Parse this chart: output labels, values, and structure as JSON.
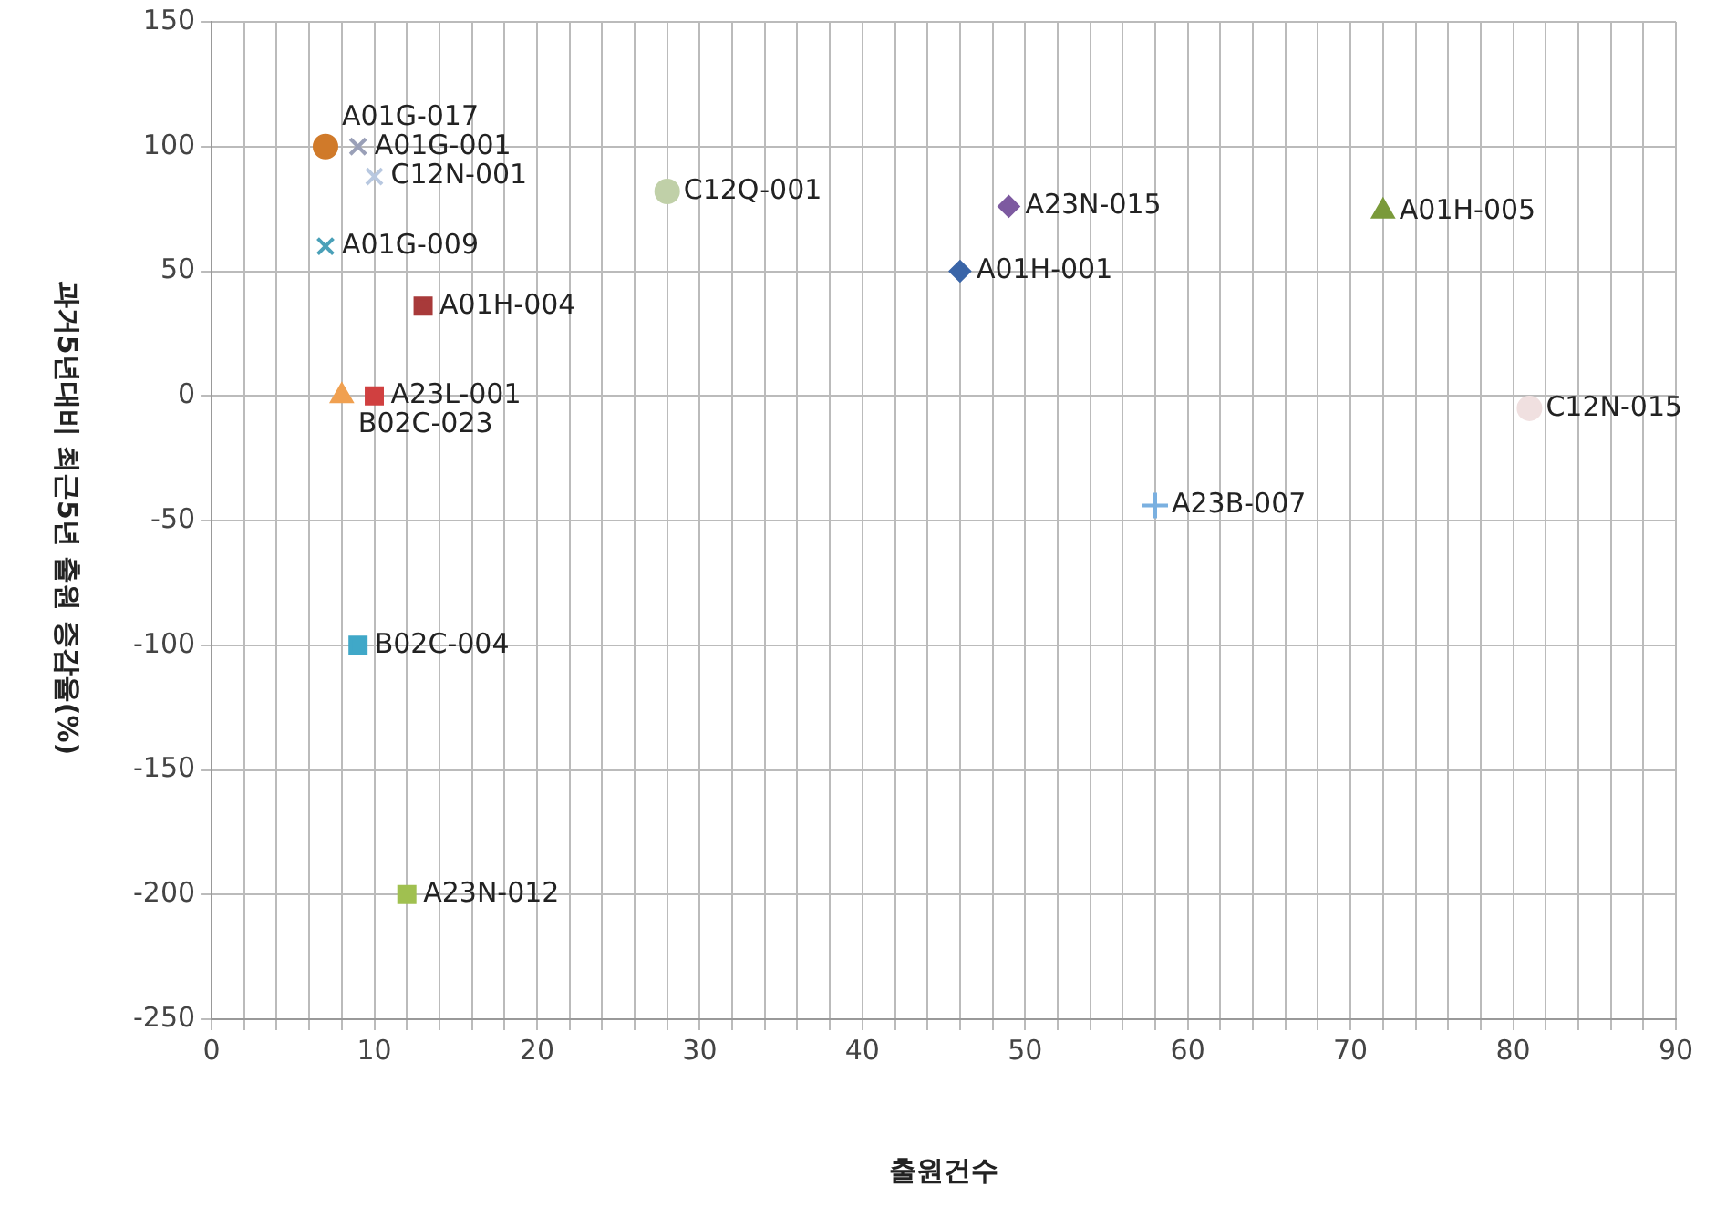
{
  "chart_data": {
    "type": "scatter",
    "xlabel": "출원건수",
    "ylabel": "과거5년대비 최근5년 출원 증감율(%)",
    "xlim": [
      0,
      90
    ],
    "ylim": [
      -250,
      150
    ],
    "xticks": [
      0,
      {
        "value": 2,
        "label": null
      },
      {
        "value": 4,
        "label": null
      },
      {
        "value": 6,
        "label": null
      },
      {
        "value": 8,
        "label": null
      },
      10,
      {
        "value": 12,
        "label": null
      },
      {
        "value": 14,
        "label": null
      },
      {
        "value": 16,
        "label": null
      },
      {
        "value": 18,
        "label": null
      },
      20,
      {
        "value": 22,
        "label": null
      },
      {
        "value": 24,
        "label": null
      },
      {
        "value": 26,
        "label": null
      },
      {
        "value": 28,
        "label": null
      },
      30,
      {
        "value": 32,
        "label": null
      },
      {
        "value": 34,
        "label": null
      },
      {
        "value": 36,
        "label": null
      },
      {
        "value": 38,
        "label": null
      },
      40,
      {
        "value": 42,
        "label": null
      },
      {
        "value": 44,
        "label": null
      },
      {
        "value": 46,
        "label": null
      },
      {
        "value": 48,
        "label": null
      },
      50,
      {
        "value": 52,
        "label": null
      },
      {
        "value": 54,
        "label": null
      },
      {
        "value": 56,
        "label": null
      },
      {
        "value": 58,
        "label": null
      },
      60,
      {
        "value": 62,
        "label": null
      },
      {
        "value": 64,
        "label": null
      },
      {
        "value": 66,
        "label": null
      },
      {
        "value": 68,
        "label": null
      },
      70,
      {
        "value": 72,
        "label": null
      },
      {
        "value": 74,
        "label": null
      },
      {
        "value": 76,
        "label": null
      },
      {
        "value": 78,
        "label": null
      },
      80,
      {
        "value": 82,
        "label": null
      },
      {
        "value": 84,
        "label": null
      },
      {
        "value": 86,
        "label": null
      },
      {
        "value": 88,
        "label": null
      },
      90
    ],
    "yticks": [
      -250,
      -200,
      -150,
      -100,
      -50,
      0,
      50,
      100,
      150
    ],
    "grid": true,
    "legend": false,
    "series": [
      {
        "name": "A01G-017",
        "color": "#d07a2a",
        "marker": "circle",
        "x": [
          7
        ],
        "values": [
          100
        ]
      },
      {
        "name": "A01G-001",
        "color": "#9aa0b8",
        "marker": "cross",
        "x": [
          9
        ],
        "values": [
          100
        ]
      },
      {
        "name": "C12N-001",
        "color": "#b8c8e0",
        "marker": "cross",
        "x": [
          10
        ],
        "values": [
          88
        ]
      },
      {
        "name": "A01G-009",
        "color": "#4aa0b8",
        "marker": "cross",
        "x": [
          7
        ],
        "values": [
          60
        ]
      },
      {
        "name": "A01H-004",
        "color": "#a83a3a",
        "marker": "square",
        "x": [
          13
        ],
        "values": [
          36
        ]
      },
      {
        "name": "A23L-001",
        "color": "#d04040",
        "marker": "square",
        "x": [
          10
        ],
        "values": [
          0
        ]
      },
      {
        "name": "B02C-023",
        "color": "#f0a050",
        "marker": "triangle",
        "x": [
          8
        ],
        "values": [
          0
        ]
      },
      {
        "name": "C12Q-001",
        "color": "#c0d0a8",
        "marker": "circle",
        "x": [
          28
        ],
        "values": [
          82
        ]
      },
      {
        "name": "A23N-015",
        "color": "#7d5aa0",
        "marker": "diamond",
        "x": [
          49
        ],
        "values": [
          76
        ]
      },
      {
        "name": "A01H-001",
        "color": "#3a65a8",
        "marker": "diamond",
        "x": [
          46
        ],
        "values": [
          50
        ]
      },
      {
        "name": "A01H-005",
        "color": "#7a9a3a",
        "marker": "triangle",
        "x": [
          72
        ],
        "values": [
          74
        ]
      },
      {
        "name": "C12N-015",
        "color": "#f0e0e0",
        "marker": "circle",
        "x": [
          81
        ],
        "values": [
          -5
        ]
      },
      {
        "name": "A23B-007",
        "color": "#7ab0e0",
        "marker": "plus",
        "x": [
          58
        ],
        "values": [
          -44
        ]
      },
      {
        "name": "B02C-004",
        "color": "#40a8c8",
        "marker": "square",
        "x": [
          9
        ],
        "values": [
          -100
        ]
      },
      {
        "name": "A23N-012",
        "color": "#a0c050",
        "marker": "square",
        "x": [
          12
        ],
        "values": [
          -200
        ]
      }
    ]
  }
}
